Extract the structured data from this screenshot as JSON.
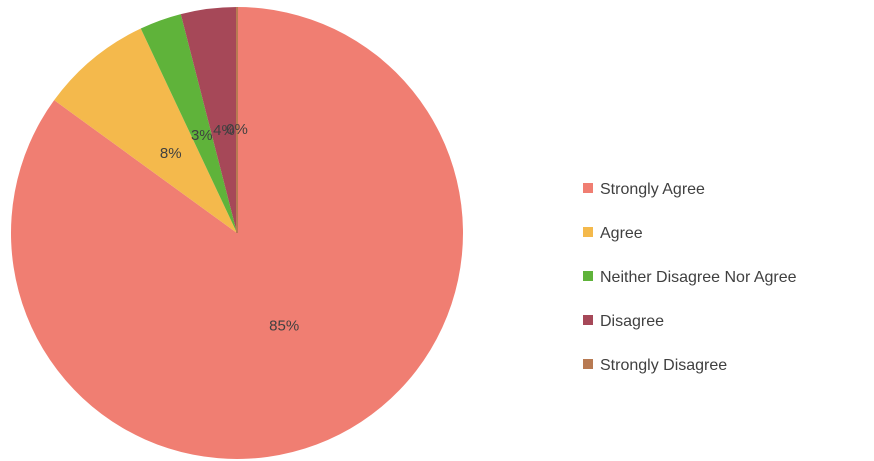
{
  "chart_data": {
    "type": "pie",
    "categories": [
      "Strongly Agree",
      "Agree",
      "Neither Disagree Nor Agree",
      "Disagree",
      "Strongly Disagree"
    ],
    "values": [
      85,
      8,
      3,
      4,
      0
    ],
    "data_labels": [
      "85%",
      "8%",
      "3%",
      "4%",
      "0%"
    ],
    "colors": [
      "#f07e72",
      "#f4b94c",
      "#5fb33a",
      "#a64858",
      "#b87a52"
    ],
    "legend_position": "right",
    "start_angle": "12 o'clock",
    "direction": "clockwise"
  }
}
